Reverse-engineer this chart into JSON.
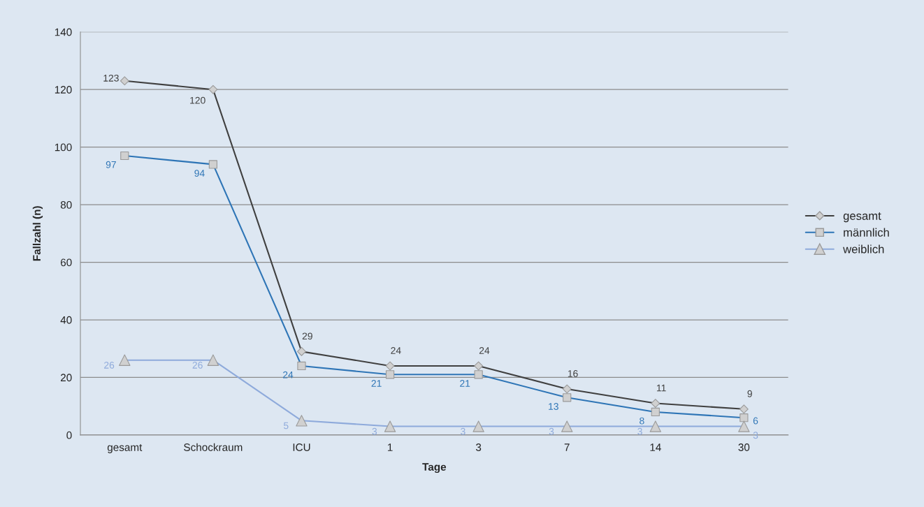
{
  "chart_data": {
    "type": "line",
    "xlabel": "Tage",
    "ylabel": "Fallzahl (n)",
    "categories": [
      "gesamt",
      "Schockraum",
      "ICU",
      "1",
      "3",
      "7",
      "14",
      "30"
    ],
    "series": [
      {
        "name": "gesamt",
        "color": "#404040",
        "marker": "diamond",
        "values": [
          123,
          120,
          29,
          24,
          24,
          16,
          11,
          9
        ]
      },
      {
        "name": "männlich",
        "color": "#2e75b6",
        "marker": "square",
        "values": [
          97,
          94,
          24,
          21,
          21,
          13,
          8,
          6
        ]
      },
      {
        "name": "weiblich",
        "color": "#8eaadb",
        "marker": "triangle",
        "values": [
          26,
          26,
          5,
          3,
          3,
          3,
          3,
          3
        ]
      }
    ],
    "ylim": [
      0,
      140
    ],
    "yticks": [
      0,
      20,
      40,
      60,
      80,
      100,
      120,
      140
    ],
    "grid": "y",
    "legend": "right",
    "data_labels": true
  }
}
